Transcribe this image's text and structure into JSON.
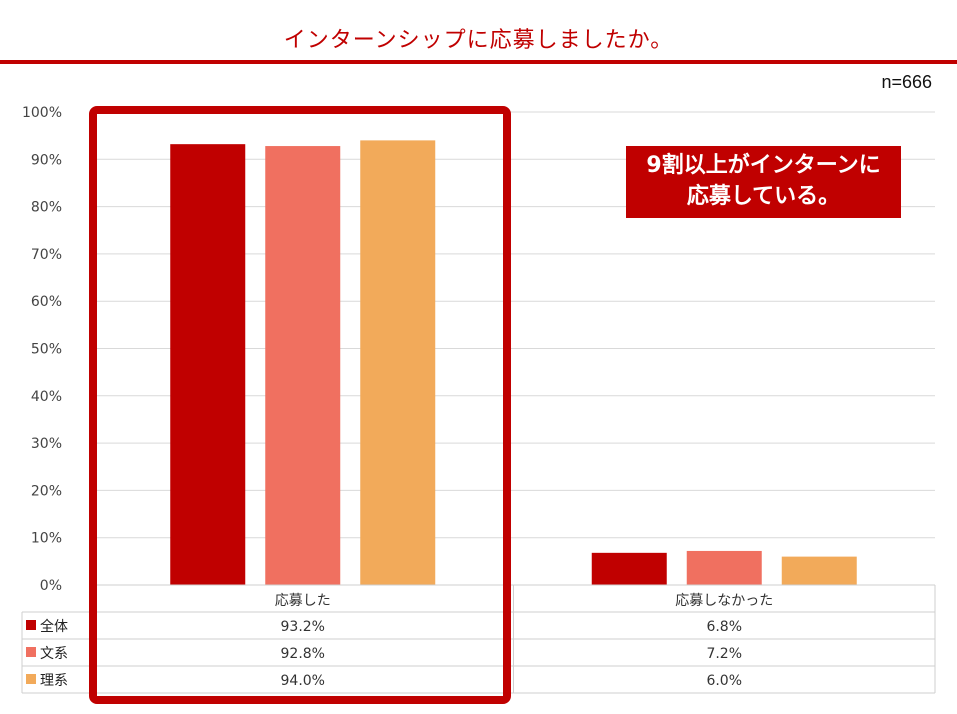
{
  "title": "インターンシップに応募しましたか。",
  "sample_size": "n=666",
  "callout": {
    "line1": "9割以上がインターンに",
    "line2": "応募している。"
  },
  "chart_data": {
    "type": "bar",
    "categories": [
      "応募した",
      "応募しなかった"
    ],
    "series": [
      {
        "name": "全体",
        "values": [
          93.2,
          6.8
        ],
        "labels": [
          "93.2%",
          "6.8%"
        ],
        "color": "#c00000"
      },
      {
        "name": "文系",
        "values": [
          92.8,
          7.2
        ],
        "labels": [
          "92.8%",
          "7.2%"
        ],
        "color": "#f07060"
      },
      {
        "name": "理系",
        "values": [
          94.0,
          6.0
        ],
        "labels": [
          "94.0%",
          "6.0%"
        ],
        "color": "#f2aa5a"
      }
    ],
    "yticks": [
      "0%",
      "10%",
      "20%",
      "30%",
      "40%",
      "50%",
      "60%",
      "70%",
      "80%",
      "90%",
      "100%"
    ],
    "ylim": [
      0,
      100
    ],
    "grid": true,
    "legend": "data-table",
    "highlight_category": "応募した"
  }
}
